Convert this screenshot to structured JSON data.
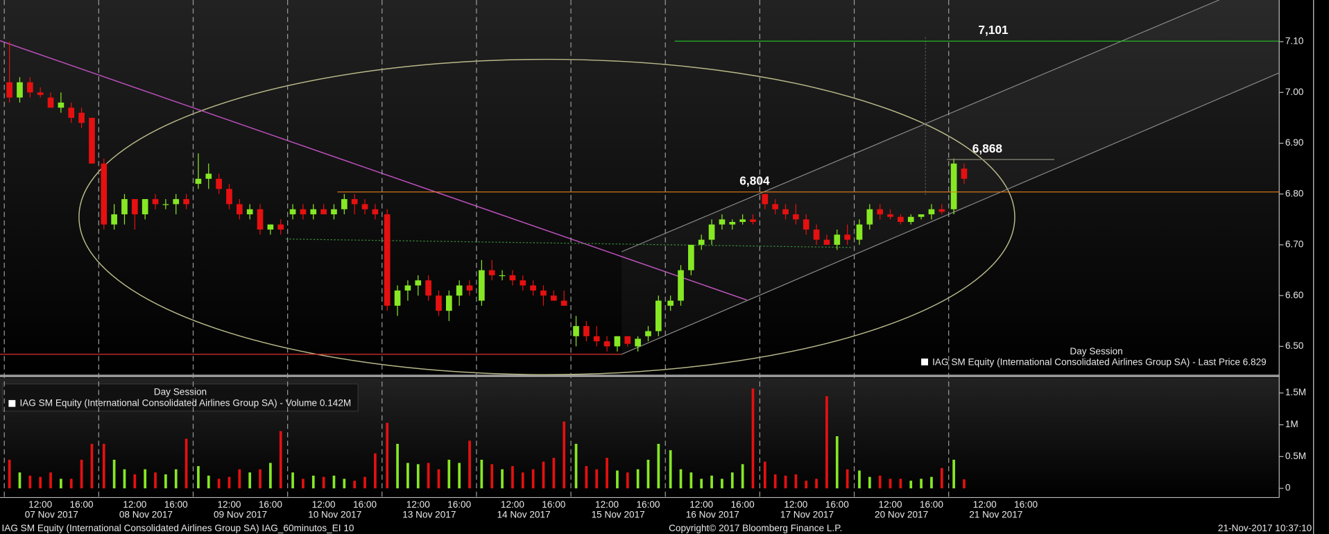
{
  "chart_data": {
    "type": "candlestick",
    "legend_price": {
      "session": "Day Session",
      "text": "IAG SM Equity (International Consolidated Airlines Group SA) - Last Price 6.829"
    },
    "legend_volume": {
      "session": "Day Session",
      "text": "IAG SM Equity (International Consolidated Airlines Group SA) - Volume 0.142M"
    },
    "footer_left": "IAG SM Equity (International Consolidated Airlines Group SA) IAG_60minutos_EI 10",
    "footer_center": "Copyright© 2017 Bloomberg Finance L.P.",
    "footer_right": "21-Nov-2017 10:37:10",
    "up_color": "#86e824",
    "down_color": "#e51010",
    "ylim": [
      6.446,
      7.182
    ],
    "yticks": [
      {
        "value": 6.5,
        "label": "6.50"
      },
      {
        "value": 6.6,
        "label": "6.60"
      },
      {
        "value": 6.7,
        "label": "6.70"
      },
      {
        "value": 6.8,
        "label": "6.80"
      },
      {
        "value": 6.9,
        "label": "6.90"
      },
      {
        "value": 7.0,
        "label": "7.00"
      },
      {
        "value": 7.1,
        "label": "7.10"
      }
    ],
    "y2lim": [
      -145000,
      1735000
    ],
    "y2ticks": [
      0,
      {
        "value": 500000,
        "label": "0.5M"
      },
      {
        "value": 1000000,
        "label": "1M"
      },
      {
        "value": 1500000,
        "label": "1.5M"
      }
    ],
    "time_ticks": [
      "12:00",
      "16:00"
    ],
    "levels": [
      {
        "value": 7.101,
        "label": "7,101",
        "color": "#22c322"
      },
      {
        "value": 6.804,
        "label": "6,804",
        "color": "#e8801a"
      },
      {
        "value": 6.868,
        "label": "6,868",
        "color": "#8a8a7a"
      }
    ],
    "days": [
      {
        "label": "07 Nov 2017",
        "candles": [
          [
            7.02,
            7.1,
            6.98,
            6.99
          ],
          [
            6.99,
            7.03,
            6.98,
            7.02
          ],
          [
            7.02,
            7.03,
            6.99,
            7.0
          ],
          [
            7.0,
            7.01,
            6.99,
            6.995
          ],
          [
            6.99,
            7.0,
            6.97,
            6.97
          ],
          [
            6.97,
            7.0,
            6.96,
            6.98
          ],
          [
            6.97,
            6.98,
            6.94,
            6.95
          ],
          [
            6.96,
            6.97,
            6.93,
            6.94
          ],
          [
            6.95,
            6.95,
            6.86,
            6.86
          ]
        ],
        "volume": [
          450000,
          250000,
          200000,
          180000,
          250000,
          150000,
          150000,
          450000,
          700000
        ]
      },
      {
        "label": "08 Nov 2017",
        "candles": [
          [
            6.86,
            6.87,
            6.73,
            6.74
          ],
          [
            6.74,
            6.78,
            6.73,
            6.76
          ],
          [
            6.76,
            6.8,
            6.74,
            6.79
          ],
          [
            6.79,
            6.79,
            6.73,
            6.76
          ],
          [
            6.76,
            6.79,
            6.75,
            6.79
          ],
          [
            6.79,
            6.8,
            6.77,
            6.78
          ],
          [
            6.78,
            6.79,
            6.77,
            6.78
          ],
          [
            6.78,
            6.8,
            6.76,
            6.79
          ],
          [
            6.79,
            6.8,
            6.77,
            6.78
          ]
        ],
        "volume": [
          700000,
          450000,
          300000,
          220000,
          300000,
          250000,
          220000,
          300000,
          780000
        ]
      },
      {
        "label": "09 Nov 2017",
        "candles": [
          [
            6.82,
            6.88,
            6.81,
            6.83
          ],
          [
            6.83,
            6.86,
            6.81,
            6.84
          ],
          [
            6.83,
            6.84,
            6.8,
            6.81
          ],
          [
            6.81,
            6.82,
            6.77,
            6.78
          ],
          [
            6.78,
            6.79,
            6.75,
            6.76
          ],
          [
            6.76,
            6.78,
            6.75,
            6.77
          ],
          [
            6.77,
            6.78,
            6.72,
            6.73
          ],
          [
            6.73,
            6.74,
            6.72,
            6.74
          ],
          [
            6.74,
            6.75,
            6.72,
            6.73
          ]
        ],
        "volume": [
          350000,
          200000,
          150000,
          180000,
          300000,
          250000,
          300000,
          400000,
          900000
        ]
      },
      {
        "label": "10 Nov 2017",
        "candles": [
          [
            6.76,
            6.78,
            6.75,
            6.77
          ],
          [
            6.77,
            6.78,
            6.75,
            6.76
          ],
          [
            6.76,
            6.78,
            6.75,
            6.77
          ],
          [
            6.77,
            6.78,
            6.76,
            6.76
          ],
          [
            6.76,
            6.78,
            6.75,
            6.77
          ],
          [
            6.77,
            6.8,
            6.76,
            6.79
          ],
          [
            6.79,
            6.8,
            6.76,
            6.78
          ],
          [
            6.78,
            6.79,
            6.76,
            6.77
          ],
          [
            6.77,
            6.78,
            6.75,
            6.76
          ]
        ],
        "volume": [
          250000,
          150000,
          200000,
          180000,
          200000,
          150000,
          120000,
          180000,
          550000
        ]
      },
      {
        "label": "13 Nov 2017",
        "candles": [
          [
            6.76,
            6.77,
            6.57,
            6.58
          ],
          [
            6.58,
            6.62,
            6.56,
            6.61
          ],
          [
            6.61,
            6.63,
            6.59,
            6.62
          ],
          [
            6.62,
            6.64,
            6.6,
            6.63
          ],
          [
            6.63,
            6.64,
            6.59,
            6.6
          ],
          [
            6.6,
            6.61,
            6.56,
            6.57
          ],
          [
            6.57,
            6.61,
            6.55,
            6.6
          ],
          [
            6.6,
            6.63,
            6.58,
            6.62
          ],
          [
            6.62,
            6.63,
            6.6,
            6.61
          ]
        ],
        "volume": [
          1030000,
          700000,
          400000,
          380000,
          400000,
          300000,
          450000,
          400000,
          750000
        ]
      },
      {
        "label": "14 Nov 2017",
        "candles": [
          [
            6.59,
            6.67,
            6.58,
            6.65
          ],
          [
            6.65,
            6.67,
            6.63,
            6.64
          ],
          [
            6.64,
            6.65,
            6.63,
            6.64
          ],
          [
            6.64,
            6.65,
            6.62,
            6.63
          ],
          [
            6.63,
            6.64,
            6.61,
            6.62
          ],
          [
            6.62,
            6.63,
            6.6,
            6.61
          ],
          [
            6.61,
            6.62,
            6.58,
            6.6
          ],
          [
            6.6,
            6.61,
            6.59,
            6.59
          ],
          [
            6.59,
            6.61,
            6.58,
            6.58
          ]
        ],
        "volume": [
          450000,
          380000,
          300000,
          350000,
          250000,
          300000,
          420000,
          480000,
          1050000
        ]
      },
      {
        "label": "15 Nov 2017",
        "candles": [
          [
            6.52,
            6.56,
            6.5,
            6.54
          ],
          [
            6.54,
            6.55,
            6.51,
            6.52
          ],
          [
            6.52,
            6.54,
            6.5,
            6.51
          ],
          [
            6.51,
            6.52,
            6.49,
            6.5
          ],
          [
            6.5,
            6.52,
            6.49,
            6.52
          ],
          [
            6.52,
            6.52,
            6.5,
            6.505
          ],
          [
            6.5,
            6.52,
            6.49,
            6.515
          ],
          [
            6.52,
            6.54,
            6.51,
            6.53
          ],
          [
            6.53,
            6.6,
            6.52,
            6.59
          ]
        ],
        "volume": [
          700000,
          350000,
          300000,
          480000,
          280000,
          250000,
          300000,
          450000,
          700000
        ]
      },
      {
        "label": "16 Nov 2017",
        "candles": [
          [
            6.58,
            6.6,
            6.57,
            6.59
          ],
          [
            6.59,
            6.66,
            6.58,
            6.65
          ],
          [
            6.65,
            6.7,
            6.64,
            6.7
          ],
          [
            6.7,
            6.72,
            6.69,
            6.71
          ],
          [
            6.71,
            6.75,
            6.7,
            6.74
          ],
          [
            6.74,
            6.76,
            6.73,
            6.75
          ],
          [
            6.74,
            6.75,
            6.73,
            6.745
          ],
          [
            6.745,
            6.76,
            6.74,
            6.75
          ],
          [
            6.75,
            6.76,
            6.74,
            6.745
          ]
        ],
        "volume": [
          600000,
          300000,
          250000,
          150000,
          200000,
          150000,
          250000,
          380000,
          1570000
        ]
      },
      {
        "label": "17 Nov 2017",
        "candles": [
          [
            6.8,
            6.8,
            6.77,
            6.78
          ],
          [
            6.78,
            6.79,
            6.76,
            6.77
          ],
          [
            6.77,
            6.78,
            6.75,
            6.76
          ],
          [
            6.76,
            6.78,
            6.74,
            6.75
          ],
          [
            6.75,
            6.76,
            6.72,
            6.73
          ],
          [
            6.73,
            6.74,
            6.7,
            6.71
          ],
          [
            6.71,
            6.72,
            6.7,
            6.7
          ],
          [
            6.7,
            6.73,
            6.69,
            6.72
          ],
          [
            6.72,
            6.74,
            6.7,
            6.71
          ]
        ],
        "volume": [
          420000,
          220000,
          200000,
          220000,
          120000,
          150000,
          1450000,
          820000,
          300000
        ]
      },
      {
        "label": "20 Nov 2017",
        "candles": [
          [
            6.71,
            6.75,
            6.7,
            6.74
          ],
          [
            6.74,
            6.78,
            6.73,
            6.77
          ],
          [
            6.77,
            6.78,
            6.75,
            6.76
          ],
          [
            6.76,
            6.77,
            6.75,
            6.755
          ],
          [
            6.755,
            6.76,
            6.74,
            6.745
          ],
          [
            6.745,
            6.76,
            6.74,
            6.755
          ],
          [
            6.755,
            6.76,
            6.75,
            6.76
          ],
          [
            6.76,
            6.78,
            6.75,
            6.77
          ],
          [
            6.77,
            6.78,
            6.76,
            6.765
          ]
        ],
        "volume": [
          280000,
          180000,
          200000,
          150000,
          150000,
          120000,
          150000,
          180000,
          320000
        ]
      },
      {
        "label": "21 Nov 2017",
        "candles": [
          [
            6.77,
            6.87,
            6.76,
            6.86
          ],
          [
            6.85,
            6.86,
            6.82,
            6.83
          ]
        ],
        "volume": [
          450000,
          142000
        ]
      }
    ]
  }
}
